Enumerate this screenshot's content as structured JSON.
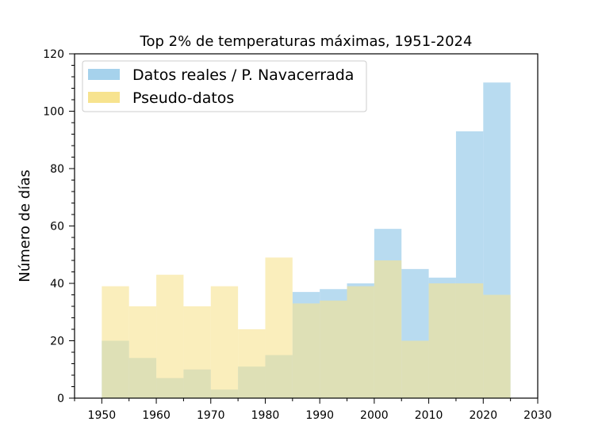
{
  "chart_data": {
    "type": "histogram",
    "title": "Top 2% de temperaturas máximas, 1951-2024",
    "xlabel": "",
    "ylabel": "Número de días",
    "xlim": [
      1945,
      2030
    ],
    "ylim": [
      0,
      120
    ],
    "xticks": [
      1950,
      1960,
      1970,
      1980,
      1990,
      2000,
      2010,
      2020,
      2030
    ],
    "yticks": [
      0,
      20,
      40,
      60,
      80,
      100,
      120
    ],
    "bin_edges": [
      1950,
      1955,
      1960,
      1965,
      1970,
      1975,
      1980,
      1985,
      1990,
      1995,
      2000,
      2005,
      2010,
      2015,
      2020,
      2025
    ],
    "legend_position": "top-left",
    "grid": false,
    "series": [
      {
        "name": "Datos reales / P. Navacerrada",
        "color": "#a6d2ec",
        "values": [
          20,
          14,
          7,
          10,
          3,
          11,
          15,
          37,
          38,
          40,
          59,
          45,
          42,
          93,
          110
        ]
      },
      {
        "name": "Pseudo-datos",
        "color": "#f7e38f",
        "values": [
          39,
          32,
          43,
          32,
          39,
          24,
          49,
          33,
          34,
          39,
          48,
          20,
          40,
          40,
          36
        ]
      }
    ]
  }
}
